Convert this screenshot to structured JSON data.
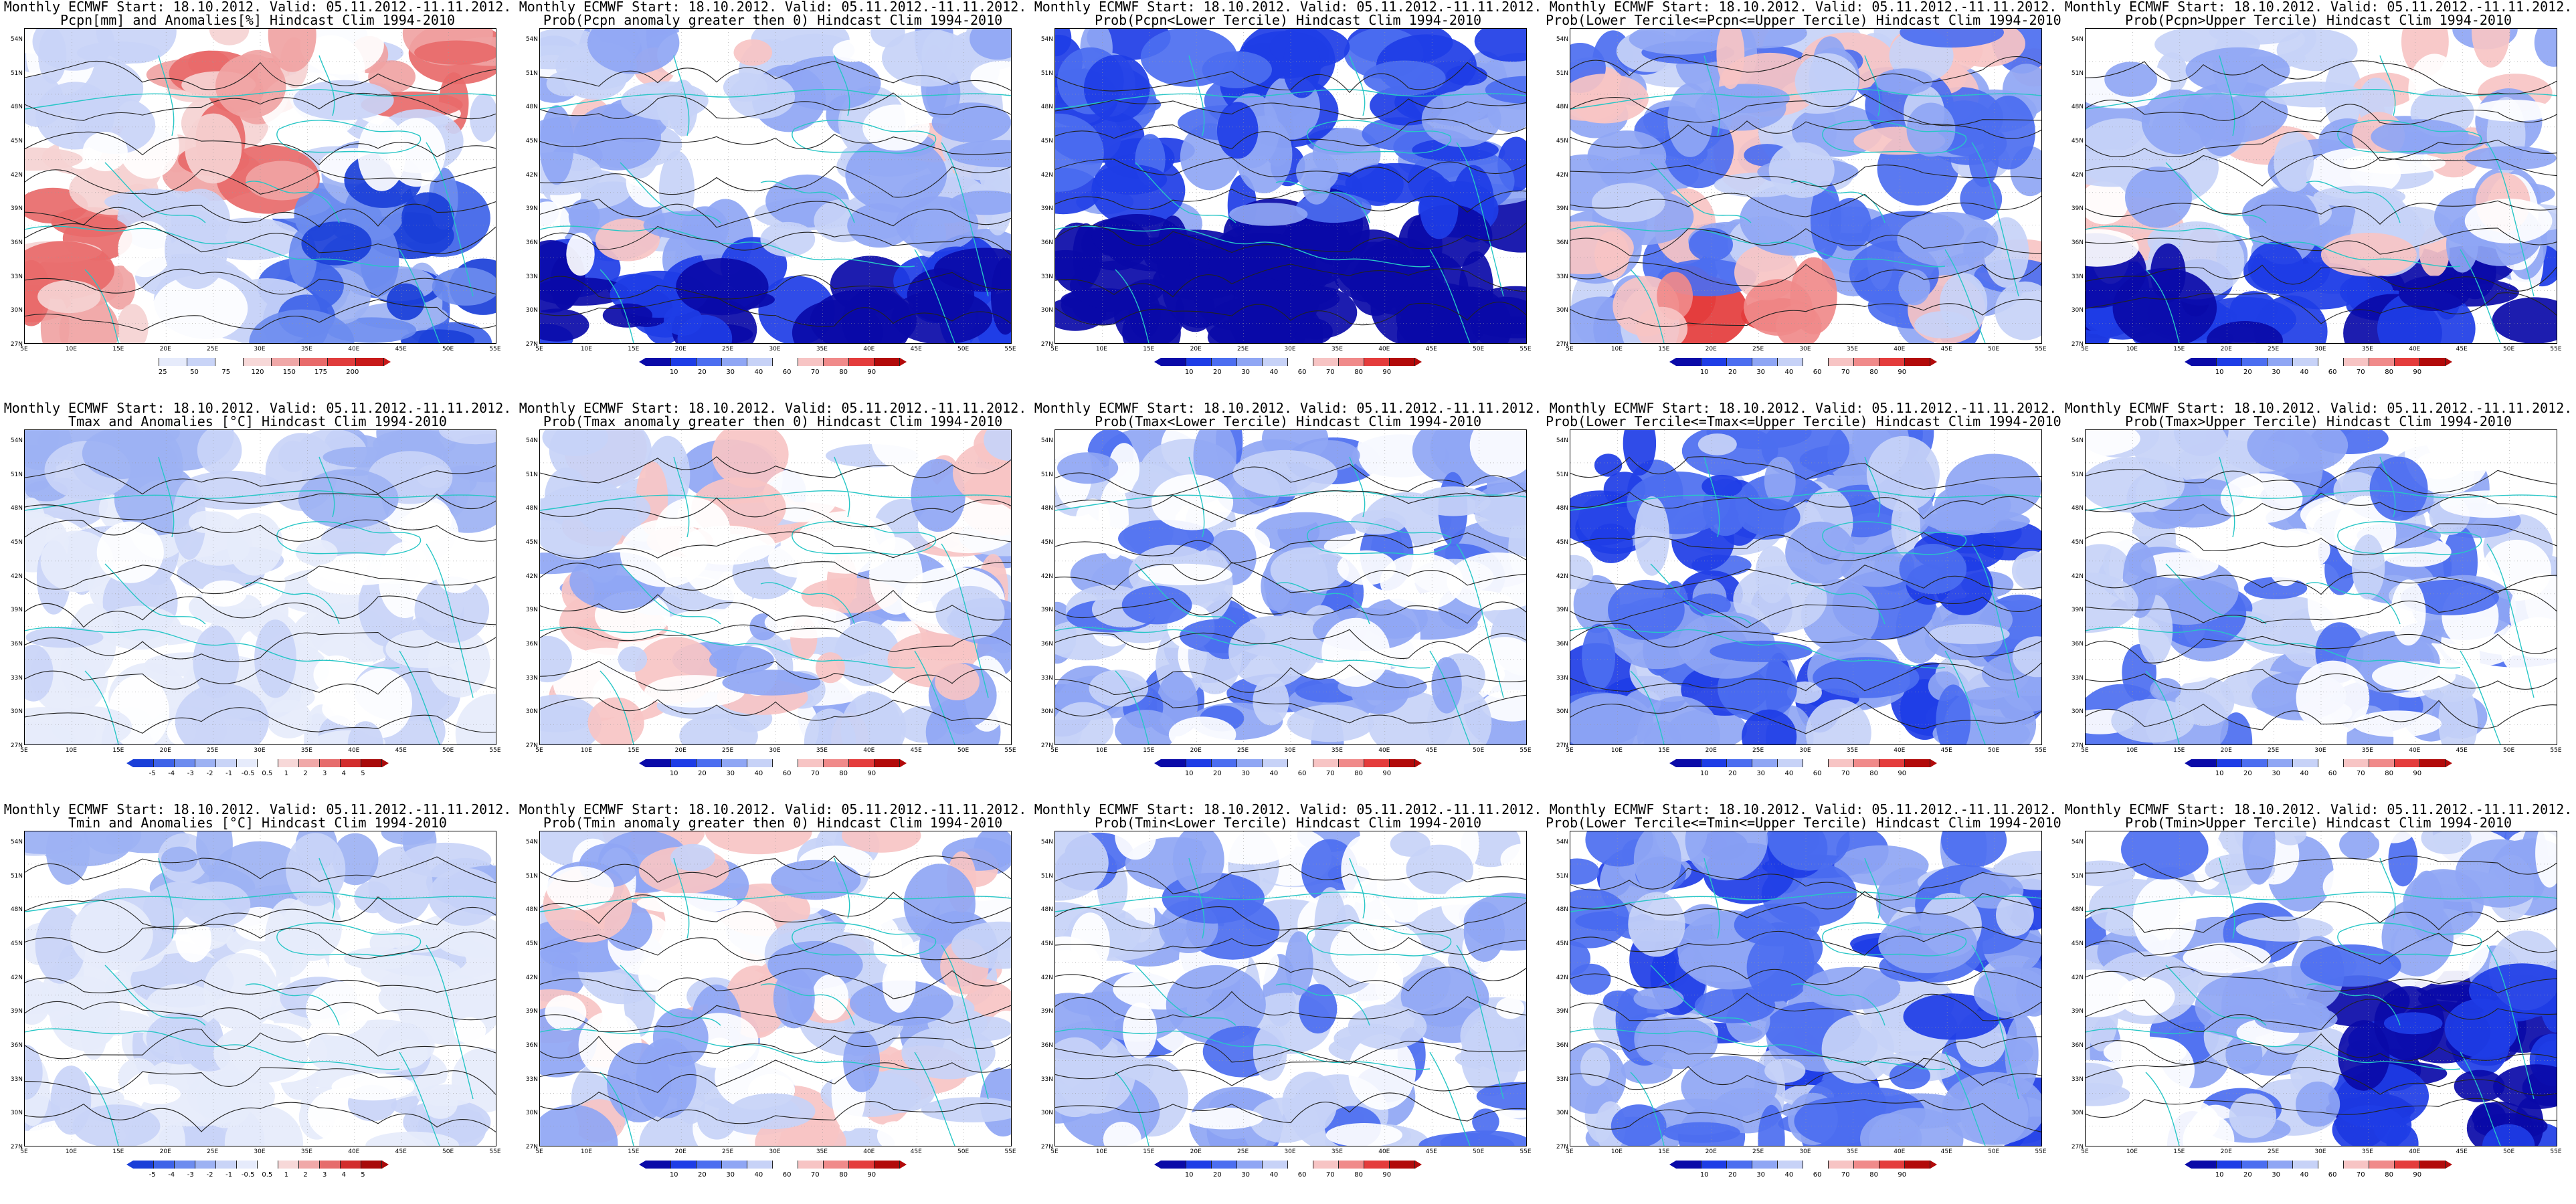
{
  "panels": [
    {
      "title1": "Monthly ECMWF Start: 18.10.2012. Valid: 05.11.2012.-11.11.2012.",
      "title2": "Pcpn[mm] and Anomalies[%] Hindcast Clim 1994-2010",
      "scale": "anomaly",
      "ticks": [
        "25",
        "50",
        "75",
        "120",
        "150",
        "175",
        "200"
      ],
      "bias": "wet"
    },
    {
      "title1": "Monthly ECMWF Start: 18.10.2012. Valid: 05.11.2012.-11.11.2012.",
      "title2": "Prob(Pcpn anomaly greater then 0) Hindcast Clim 1994-2010",
      "scale": "prob",
      "ticks": [
        "10",
        "20",
        "30",
        "40",
        "60",
        "70",
        "80",
        "90"
      ],
      "bias": "blue-south"
    },
    {
      "title1": "Monthly ECMWF Start: 18.10.2012. Valid: 05.11.2012.-11.11.2012.",
      "title2": "Prob(Pcpn<Lower Tercile) Hindcast Clim 1994-2010",
      "scale": "prob",
      "ticks": [
        "10",
        "20",
        "30",
        "40",
        "60",
        "70",
        "80",
        "90"
      ],
      "bias": "deep-blue"
    },
    {
      "title1": "Monthly ECMWF Start: 18.10.2012. Valid: 05.11.2012.-11.11.2012.",
      "title2": "Prob(Lower Tercile<=Pcpn<=Upper Tercile) Hindcast Clim 1994-2010",
      "scale": "prob",
      "ticks": [
        "10",
        "20",
        "30",
        "40",
        "60",
        "70",
        "80",
        "90"
      ],
      "bias": "red-south"
    },
    {
      "title1": "Monthly ECMWF Start: 18.10.2012. Valid: 05.11.2012.-11.11.2012.",
      "title2": "Prob(Pcpn>Upper Tercile) Hindcast Clim 1994-2010",
      "scale": "prob",
      "ticks": [
        "10",
        "20",
        "30",
        "40",
        "60",
        "70",
        "80",
        "90"
      ],
      "bias": "blue-south"
    },
    {
      "title1": "Monthly ECMWF Start: 18.10.2012. Valid: 05.11.2012.-11.11.2012.",
      "title2": "Tmax and Anomalies [°C] Hindcast Clim 1994-2010",
      "scale": "temp",
      "ticks": [
        "-5",
        "-4",
        "-3",
        "-2",
        "-1",
        "-0.5",
        "0.5",
        "1",
        "2",
        "3",
        "4",
        "5"
      ],
      "bias": "pale"
    },
    {
      "title1": "Monthly ECMWF Start: 18.10.2012. Valid: 05.11.2012.-11.11.2012.",
      "title2": "Prob(Tmax anomaly greater then 0) Hindcast Clim 1994-2010",
      "scale": "prob",
      "ticks": [
        "10",
        "20",
        "30",
        "40",
        "60",
        "70",
        "80",
        "90"
      ],
      "bias": "mixed"
    },
    {
      "title1": "Monthly ECMWF Start: 18.10.2012. Valid: 05.11.2012.-11.11.2012.",
      "title2": "Prob(Tmax<Lower Tercile) Hindcast Clim 1994-2010",
      "scale": "prob",
      "ticks": [
        "10",
        "20",
        "30",
        "40",
        "60",
        "70",
        "80",
        "90"
      ],
      "bias": "light-blue"
    },
    {
      "title1": "Monthly ECMWF Start: 18.10.2012. Valid: 05.11.2012.-11.11.2012.",
      "title2": "Prob(Lower Tercile<=Tmax<=Upper Tercile) Hindcast Clim 1994-2010",
      "scale": "prob",
      "ticks": [
        "10",
        "20",
        "30",
        "40",
        "60",
        "70",
        "80",
        "90"
      ],
      "bias": "mid-blue"
    },
    {
      "title1": "Monthly ECMWF Start: 18.10.2012. Valid: 05.11.2012.-11.11.2012.",
      "title2": "Prob(Tmax>Upper Tercile) Hindcast Clim 1994-2010",
      "scale": "prob",
      "ticks": [
        "10",
        "20",
        "30",
        "40",
        "60",
        "70",
        "80",
        "90"
      ],
      "bias": "light-blue"
    },
    {
      "title1": "Monthly ECMWF Start: 18.10.2012. Valid: 05.11.2012.-11.11.2012.",
      "title2": "Tmin and Anomalies [°C] Hindcast Clim 1994-2010",
      "scale": "temp",
      "ticks": [
        "-5",
        "-4",
        "-3",
        "-2",
        "-1",
        "-0.5",
        "0.5",
        "1",
        "2",
        "3",
        "4",
        "5"
      ],
      "bias": "pale"
    },
    {
      "title1": "Monthly ECMWF Start: 18.10.2012. Valid: 05.11.2012.-11.11.2012.",
      "title2": "Prob(Tmin anomaly greater then 0) Hindcast Clim 1994-2010",
      "scale": "prob",
      "ticks": [
        "10",
        "20",
        "30",
        "40",
        "60",
        "70",
        "80",
        "90"
      ],
      "bias": "mixed"
    },
    {
      "title1": "Monthly ECMWF Start: 18.10.2012. Valid: 05.11.2012.-11.11.2012.",
      "title2": "Prob(Tmin<Lower Tercile) Hindcast Clim 1994-2010",
      "scale": "prob",
      "ticks": [
        "10",
        "20",
        "30",
        "40",
        "60",
        "70",
        "80",
        "90"
      ],
      "bias": "light-blue"
    },
    {
      "title1": "Monthly ECMWF Start: 18.10.2012. Valid: 05.11.2012.-11.11.2012.",
      "title2": "Prob(Lower Tercile<=Tmin<=Upper Tercile) Hindcast Clim 1994-2010",
      "scale": "prob",
      "ticks": [
        "10",
        "20",
        "30",
        "40",
        "60",
        "70",
        "80",
        "90"
      ],
      "bias": "mid-blue"
    },
    {
      "title1": "Monthly ECMWF Start: 18.10.2012. Valid: 05.11.2012.-11.11.2012.",
      "title2": "Prob(Tmin>Upper Tercile) Hindcast Clim 1994-2010",
      "scale": "prob",
      "ticks": [
        "10",
        "20",
        "30",
        "40",
        "60",
        "70",
        "80",
        "90"
      ],
      "bias": "blue-southeast"
    }
  ],
  "lat_labels": [
    "54N",
    "51N",
    "48N",
    "45N",
    "42N",
    "39N",
    "36N",
    "33N",
    "30N",
    "27N"
  ],
  "lon_labels": [
    "5E",
    "10E",
    "15E",
    "20E",
    "25E",
    "30E",
    "35E",
    "40E",
    "45E",
    "50E",
    "55E"
  ],
  "colors": {
    "prob": [
      "#0a0aa8",
      "#1e3de6",
      "#4c6ef0",
      "#8fa6f4",
      "#c7d2f7",
      "#ffffff",
      "#f7c4c4",
      "#f08a8a",
      "#e43c3c",
      "#b20a0a"
    ],
    "anomaly": [
      "#f5d3d3",
      "#f0a3a3",
      "#e86a6a",
      "#ffffff",
      "#c9d4f7",
      "#9db2f3",
      "#6d8cef",
      "#3e63e8",
      "#1a3fd8"
    ],
    "temp": [
      "#1a3fd8",
      "#3e63e8",
      "#6d8cef",
      "#9db2f3",
      "#c9d4f7",
      "#e6ebfb",
      "#ffffff",
      "#f7d8d8",
      "#f0a8a8",
      "#e66c6c",
      "#d22d2d",
      "#a80a0a"
    ],
    "coast": "#27c6c6",
    "contour": "#222222"
  }
}
